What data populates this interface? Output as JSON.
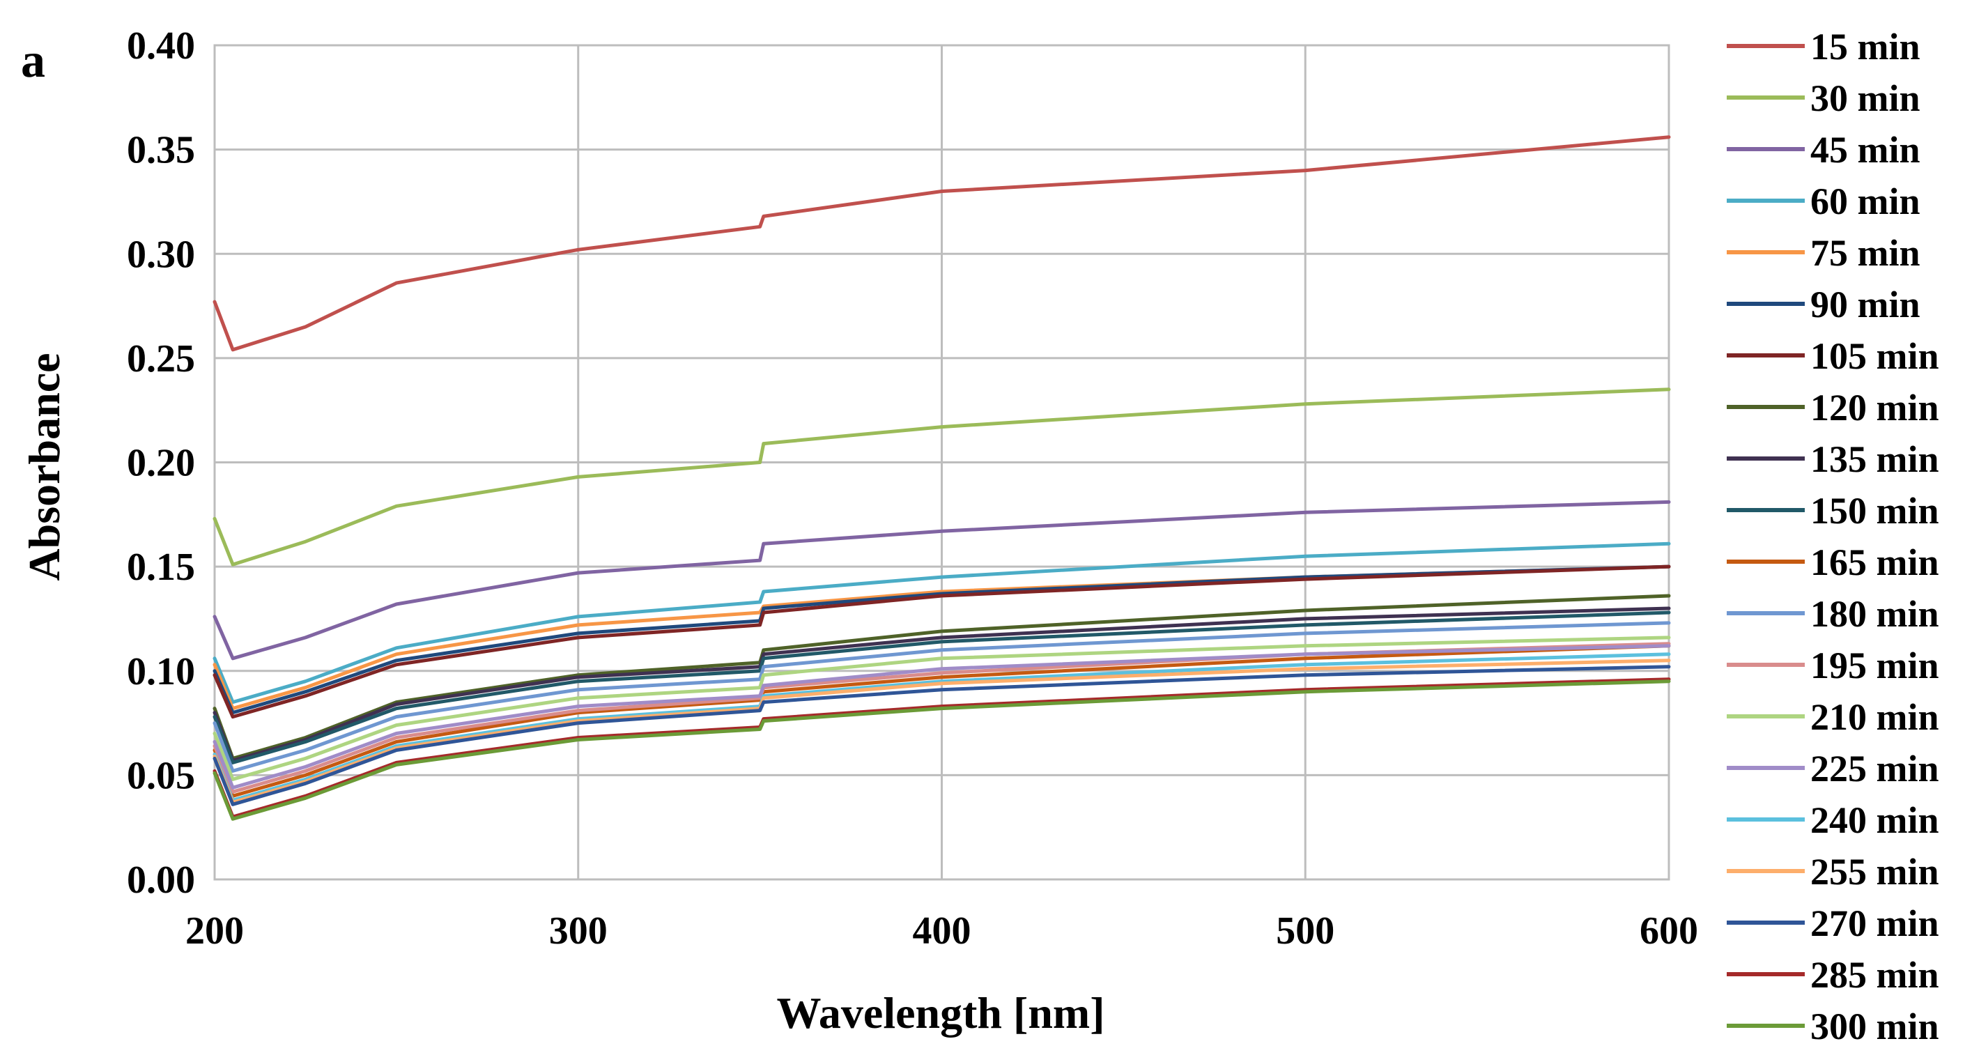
{
  "chart_data": {
    "type": "line",
    "panel_label": "a",
    "xlabel": "Wavelength [nm]",
    "ylabel": "Absorbance",
    "xlim": [
      200,
      600
    ],
    "ylim": [
      0,
      0.4
    ],
    "x_ticks": [
      200,
      300,
      400,
      500,
      600
    ],
    "x_tick_labels": [
      "200",
      "300",
      "400",
      "500",
      "600"
    ],
    "y_ticks": [
      0,
      0.05,
      0.1,
      0.15,
      0.2,
      0.25,
      0.3,
      0.35,
      0.4
    ],
    "y_tick_labels": [
      "0.00",
      "0.05",
      "0.10",
      "0.15",
      "0.20",
      "0.25",
      "0.30",
      "0.35",
      "0.40"
    ],
    "grid": true,
    "legend_position": "right",
    "x": [
      200,
      205,
      225,
      250,
      300,
      350,
      351,
      400,
      500,
      600
    ],
    "series": [
      {
        "name": "15 min",
        "color": "#c0504d",
        "values": [
          0.277,
          0.254,
          0.265,
          0.286,
          0.302,
          0.313,
          0.318,
          0.33,
          0.34,
          0.356
        ]
      },
      {
        "name": "30 min",
        "color": "#9bbb59",
        "values": [
          0.173,
          0.151,
          0.162,
          0.179,
          0.193,
          0.2,
          0.209,
          0.217,
          0.228,
          0.235
        ]
      },
      {
        "name": "45 min",
        "color": "#8064a2",
        "values": [
          0.126,
          0.106,
          0.116,
          0.132,
          0.147,
          0.153,
          0.161,
          0.167,
          0.176,
          0.181
        ]
      },
      {
        "name": "60 min",
        "color": "#4bacc6",
        "values": [
          0.106,
          0.085,
          0.095,
          0.111,
          0.126,
          0.133,
          0.138,
          0.145,
          0.155,
          0.161
        ]
      },
      {
        "name": "75 min",
        "color": "#f79646",
        "values": [
          0.103,
          0.082,
          0.092,
          0.108,
          0.122,
          0.128,
          0.131,
          0.138,
          0.145,
          0.15
        ]
      },
      {
        "name": "90 min",
        "color": "#1f497d",
        "values": [
          0.1,
          0.08,
          0.09,
          0.105,
          0.118,
          0.124,
          0.13,
          0.137,
          0.145,
          0.15
        ]
      },
      {
        "name": "105 min",
        "color": "#7f2525",
        "values": [
          0.098,
          0.078,
          0.088,
          0.103,
          0.116,
          0.122,
          0.128,
          0.136,
          0.144,
          0.15
        ]
      },
      {
        "name": "120 min",
        "color": "#4f6228",
        "values": [
          0.082,
          0.058,
          0.068,
          0.085,
          0.098,
          0.104,
          0.11,
          0.119,
          0.129,
          0.136
        ]
      },
      {
        "name": "135 min",
        "color": "#3f3151",
        "values": [
          0.08,
          0.057,
          0.067,
          0.084,
          0.097,
          0.102,
          0.108,
          0.116,
          0.125,
          0.13
        ]
      },
      {
        "name": "150 min",
        "color": "#215968",
        "values": [
          0.078,
          0.056,
          0.066,
          0.082,
          0.095,
          0.1,
          0.106,
          0.114,
          0.122,
          0.128
        ]
      },
      {
        "name": "165 min",
        "color": "#c55a11",
        "values": [
          0.062,
          0.04,
          0.05,
          0.066,
          0.08,
          0.086,
          0.09,
          0.097,
          0.106,
          0.112
        ]
      },
      {
        "name": "180 min",
        "color": "#6f97d1",
        "values": [
          0.075,
          0.052,
          0.062,
          0.078,
          0.091,
          0.096,
          0.102,
          0.11,
          0.118,
          0.123
        ]
      },
      {
        "name": "195 min",
        "color": "#d98c8c",
        "values": [
          0.064,
          0.042,
          0.052,
          0.068,
          0.081,
          0.087,
          0.092,
          0.099,
          0.108,
          0.113
        ]
      },
      {
        "name": "210 min",
        "color": "#aed581",
        "values": [
          0.07,
          0.048,
          0.058,
          0.074,
          0.087,
          0.092,
          0.098,
          0.106,
          0.112,
          0.116
        ]
      },
      {
        "name": "225 min",
        "color": "#a08cc8",
        "values": [
          0.066,
          0.044,
          0.054,
          0.07,
          0.083,
          0.088,
          0.093,
          0.101,
          0.108,
          0.112
        ]
      },
      {
        "name": "240 min",
        "color": "#5bc0de",
        "values": [
          0.06,
          0.038,
          0.048,
          0.064,
          0.077,
          0.083,
          0.088,
          0.095,
          0.103,
          0.108
        ]
      },
      {
        "name": "255 min",
        "color": "#fdae6b",
        "values": [
          0.059,
          0.037,
          0.047,
          0.063,
          0.076,
          0.082,
          0.087,
          0.094,
          0.101,
          0.105
        ]
      },
      {
        "name": "270 min",
        "color": "#2f5597",
        "values": [
          0.058,
          0.036,
          0.046,
          0.062,
          0.075,
          0.081,
          0.085,
          0.091,
          0.098,
          0.102
        ]
      },
      {
        "name": "285 min",
        "color": "#a52a2a",
        "values": [
          0.052,
          0.03,
          0.04,
          0.056,
          0.068,
          0.073,
          0.077,
          0.083,
          0.091,
          0.096
        ]
      },
      {
        "name": "300 min",
        "color": "#6b9b37",
        "values": [
          0.051,
          0.029,
          0.039,
          0.055,
          0.067,
          0.072,
          0.076,
          0.082,
          0.09,
          0.095
        ]
      }
    ]
  }
}
